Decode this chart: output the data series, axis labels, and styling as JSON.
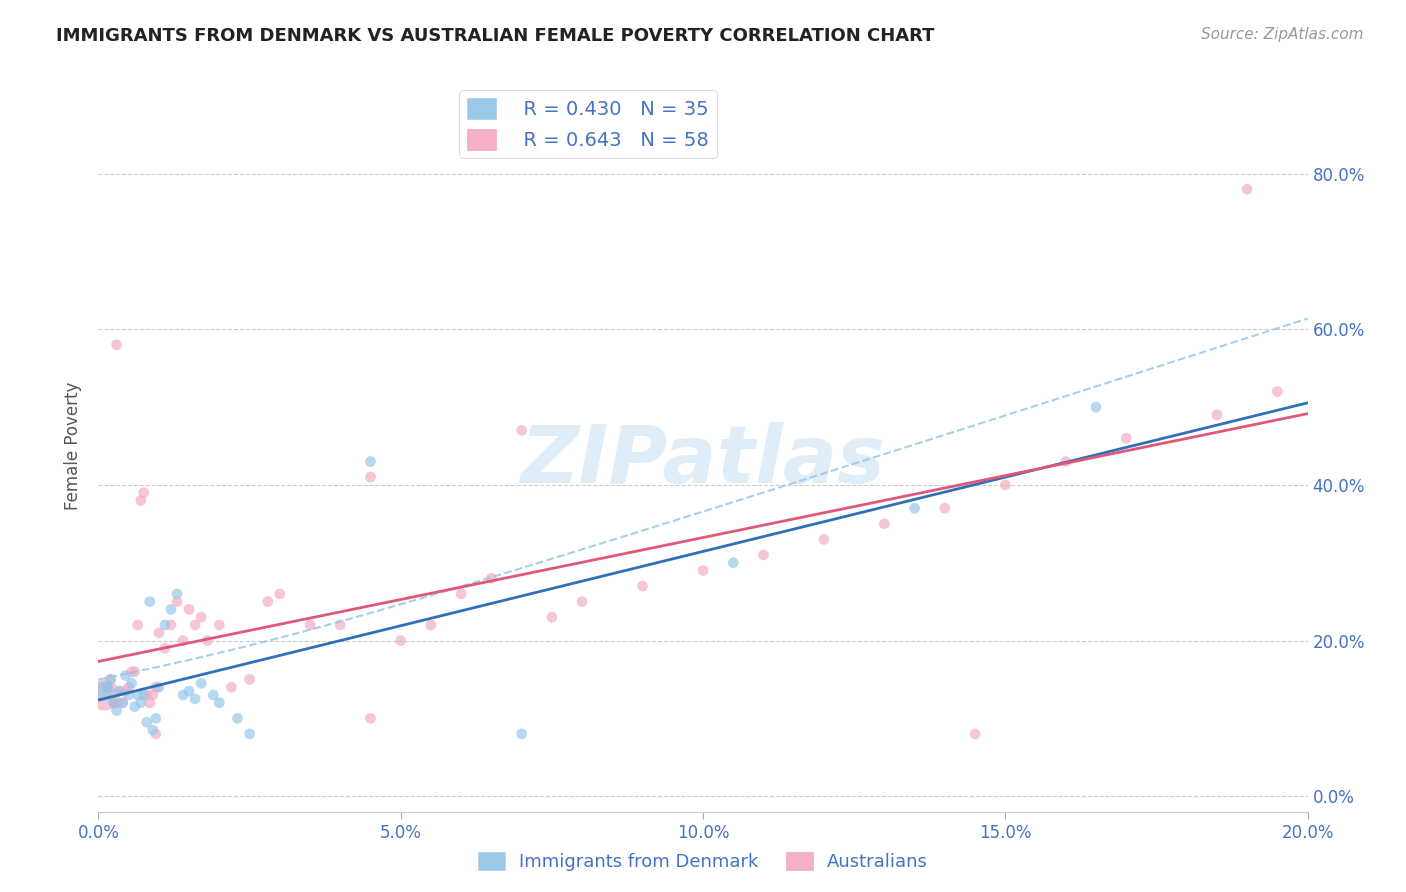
{
  "title": "IMMIGRANTS FROM DENMARK VS AUSTRALIAN FEMALE POVERTY CORRELATION CHART",
  "source": "Source: ZipAtlas.com",
  "ylabel_label": "Female Poverty",
  "watermark": "ZIPatlas",
  "legend_label1": "Immigrants from Denmark",
  "legend_label2": "Australians",
  "R1": 0.43,
  "N1": 35,
  "R2": 0.643,
  "N2": 58,
  "blue_color": "#90c4e8",
  "pink_color": "#f4a8bf",
  "trend_blue": "#3070b8",
  "trend_pink": "#e05878",
  "dashed_color": "#90c4e8",
  "xlim": [
    0.0,
    20.0
  ],
  "ylim": [
    -2.0,
    92.0
  ],
  "xticks": [
    0.0,
    5.0,
    10.0,
    15.0,
    20.0
  ],
  "yticks": [
    0.0,
    20.0,
    40.0,
    60.0,
    80.0
  ],
  "blue_x": [
    0.1,
    0.15,
    0.2,
    0.3,
    0.35,
    0.4,
    0.5,
    0.55,
    0.6,
    0.65,
    0.7,
    0.75,
    0.8,
    0.9,
    0.95,
    1.0,
    1.1,
    1.2,
    1.3,
    1.4,
    1.5,
    1.7,
    2.0,
    2.3,
    2.5,
    4.5,
    7.0,
    10.5,
    13.5,
    16.5,
    0.25,
    0.45,
    0.85,
    1.6,
    1.9
  ],
  "blue_y": [
    13.5,
    14.0,
    15.0,
    11.0,
    13.5,
    12.0,
    13.0,
    14.5,
    11.5,
    13.0,
    12.0,
    13.0,
    9.5,
    8.5,
    10.0,
    14.0,
    22.0,
    24.0,
    26.0,
    13.0,
    13.5,
    14.5,
    12.0,
    10.0,
    8.0,
    43.0,
    8.0,
    30.0,
    37.0,
    50.0,
    12.0,
    15.5,
    25.0,
    12.5,
    13.0
  ],
  "blue_sizes": [
    200,
    60,
    60,
    60,
    60,
    60,
    60,
    60,
    60,
    60,
    60,
    60,
    60,
    60,
    60,
    60,
    60,
    60,
    60,
    60,
    60,
    60,
    60,
    60,
    60,
    60,
    60,
    60,
    60,
    60,
    60,
    60,
    60,
    60,
    60
  ],
  "pink_x": [
    0.1,
    0.15,
    0.2,
    0.25,
    0.3,
    0.35,
    0.4,
    0.45,
    0.5,
    0.55,
    0.6,
    0.65,
    0.7,
    0.75,
    0.8,
    0.85,
    0.9,
    0.95,
    1.0,
    1.1,
    1.2,
    1.3,
    1.4,
    1.5,
    1.6,
    1.7,
    1.8,
    2.0,
    2.2,
    2.5,
    2.8,
    3.0,
    3.5,
    4.0,
    4.5,
    5.0,
    5.5,
    6.0,
    6.5,
    7.0,
    7.5,
    8.0,
    9.0,
    10.0,
    11.0,
    12.0,
    13.0,
    14.0,
    15.0,
    16.0,
    17.0,
    18.5,
    19.0,
    19.5,
    0.3,
    0.95,
    4.5,
    14.5
  ],
  "pink_y": [
    13.0,
    14.0,
    15.0,
    12.0,
    58.0,
    13.5,
    12.0,
    13.5,
    14.0,
    16.0,
    16.0,
    22.0,
    38.0,
    39.0,
    13.0,
    12.0,
    13.0,
    14.0,
    21.0,
    19.0,
    22.0,
    25.0,
    20.0,
    24.0,
    22.0,
    23.0,
    20.0,
    22.0,
    14.0,
    15.0,
    25.0,
    26.0,
    22.0,
    22.0,
    41.0,
    20.0,
    22.0,
    26.0,
    28.0,
    47.0,
    23.0,
    25.0,
    27.0,
    29.0,
    31.0,
    33.0,
    35.0,
    37.0,
    40.0,
    43.0,
    46.0,
    49.0,
    78.0,
    52.0,
    12.0,
    8.0,
    10.0,
    8.0
  ],
  "pink_sizes": [
    500,
    60,
    60,
    60,
    60,
    60,
    60,
    60,
    60,
    60,
    60,
    60,
    60,
    60,
    60,
    60,
    60,
    60,
    60,
    60,
    60,
    60,
    60,
    60,
    60,
    60,
    60,
    60,
    60,
    60,
    60,
    60,
    60,
    60,
    60,
    60,
    60,
    60,
    60,
    60,
    60,
    60,
    60,
    60,
    60,
    60,
    60,
    60,
    60,
    60,
    60,
    60,
    60,
    60,
    60,
    60,
    60,
    60
  ]
}
